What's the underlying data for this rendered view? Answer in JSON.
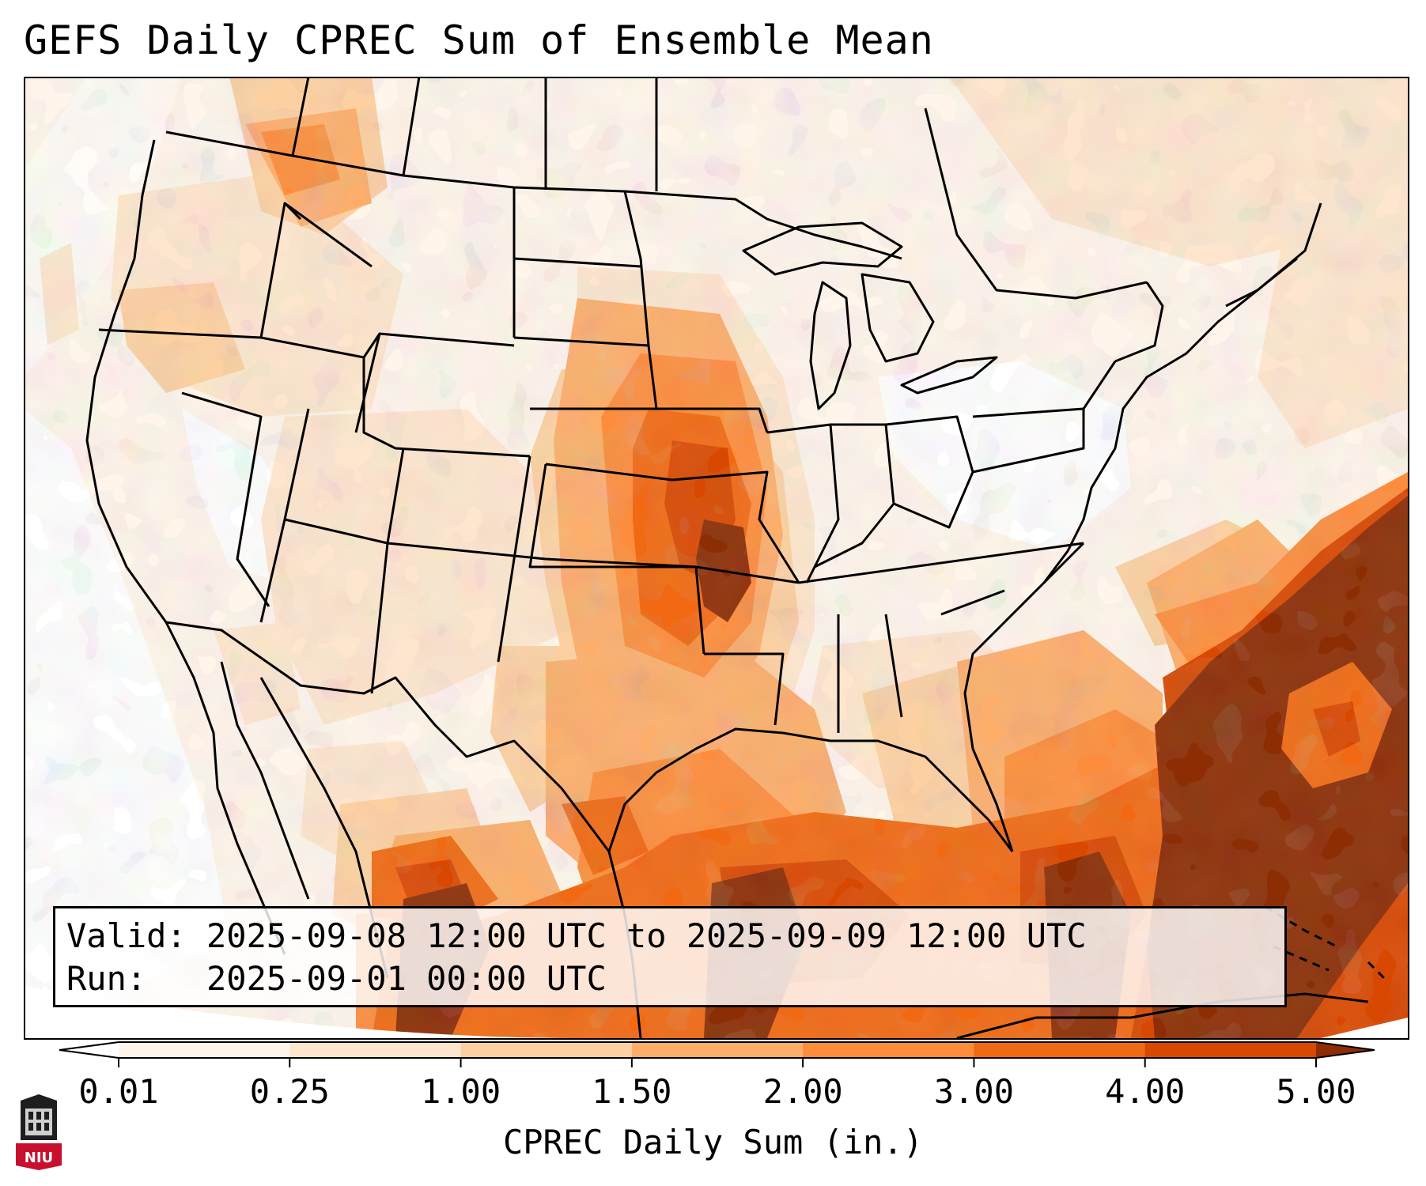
{
  "title": "GEFS Daily CPREC Sum of Ensemble Mean",
  "info": {
    "valid_label": "Valid:",
    "valid_value": "2025-09-08 12:00 UTC to 2025-09-09 12:00 UTC",
    "run_label": "Run:",
    "run_value": "2025-09-01 00:00 UTC"
  },
  "colorbar": {
    "label": "CPREC Daily Sum (in.)",
    "ticks": [
      "0.01",
      "0.25",
      "1.00",
      "1.50",
      "2.00",
      "3.00",
      "4.00",
      "5.00"
    ],
    "colors": [
      "#fff5eb",
      "#fee6ce",
      "#fdd0a2",
      "#fdae6b",
      "#fd8d3c",
      "#f16913",
      "#d94801",
      "#8c2d04"
    ]
  },
  "logo": {
    "text": "NIU"
  },
  "colors": {
    "zero": "#ffffff",
    "over": "#7f2704",
    "under": "#ffffff",
    "border": "#000000"
  }
}
